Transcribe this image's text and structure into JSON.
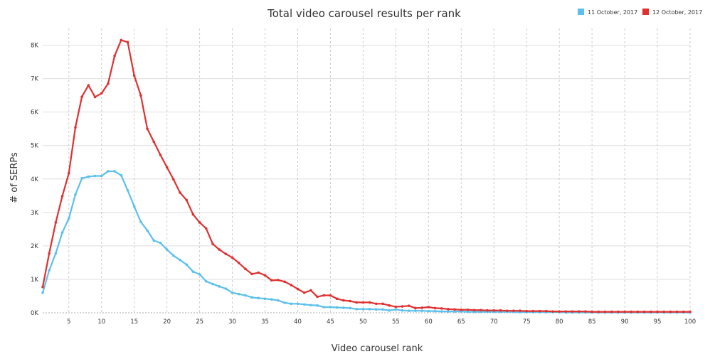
{
  "chart_data": {
    "type": "line",
    "title": "Total video carousel results per rank",
    "xlabel": "Video carousel rank",
    "ylabel": "# of SERPs",
    "xlim": [
      1,
      100
    ],
    "ylim": [
      0,
      8500
    ],
    "x_ticks": [
      5,
      10,
      15,
      20,
      25,
      30,
      35,
      40,
      45,
      50,
      55,
      60,
      65,
      70,
      75,
      80,
      85,
      90,
      95,
      100
    ],
    "y_ticks": [
      {
        "value": 0,
        "label": "0K"
      },
      {
        "value": 1000,
        "label": "1K"
      },
      {
        "value": 2000,
        "label": "2K"
      },
      {
        "value": 3000,
        "label": "3K"
      },
      {
        "value": 4000,
        "label": "4K"
      },
      {
        "value": 5000,
        "label": "5K"
      },
      {
        "value": 6000,
        "label": "6K"
      },
      {
        "value": 7000,
        "label": "7K"
      },
      {
        "value": 8000,
        "label": "8K"
      }
    ],
    "grid": true,
    "legend_position": "top-right",
    "series": [
      {
        "name": "11 October, 2017",
        "color": "#5bc0eb",
        "values": [
          600,
          1270,
          1780,
          2400,
          2820,
          3530,
          4020,
          4070,
          4090,
          4090,
          4230,
          4230,
          4110,
          3660,
          3180,
          2720,
          2460,
          2160,
          2090,
          1890,
          1710,
          1580,
          1440,
          1230,
          1150,
          940,
          860,
          790,
          720,
          600,
          560,
          520,
          460,
          440,
          420,
          400,
          370,
          300,
          270,
          270,
          250,
          230,
          220,
          170,
          170,
          160,
          150,
          140,
          110,
          110,
          110,
          100,
          100,
          70,
          100,
          70,
          60,
          60,
          60,
          50,
          50,
          40,
          40,
          40,
          40,
          30,
          30,
          30,
          30,
          30,
          30,
          30,
          30,
          20,
          20,
          20,
          20,
          20,
          20,
          20,
          10,
          10,
          10,
          10,
          10,
          10,
          10,
          10,
          10,
          10,
          10,
          10,
          10,
          10,
          10,
          10,
          10,
          10,
          10,
          10
        ]
      },
      {
        "name": "12 October, 2017",
        "color": "#e03030",
        "values": [
          770,
          1780,
          2700,
          3490,
          4170,
          5540,
          6460,
          6800,
          6450,
          6560,
          6850,
          7680,
          8150,
          8090,
          7090,
          6500,
          5500,
          5110,
          4720,
          4350,
          3990,
          3590,
          3370,
          2940,
          2700,
          2520,
          2060,
          1890,
          1760,
          1650,
          1490,
          1310,
          1160,
          1200,
          1120,
          970,
          980,
          930,
          830,
          710,
          600,
          670,
          480,
          520,
          520,
          420,
          370,
          350,
          310,
          310,
          310,
          270,
          270,
          220,
          180,
          190,
          210,
          140,
          150,
          170,
          140,
          130,
          110,
          100,
          90,
          90,
          80,
          80,
          70,
          70,
          70,
          60,
          60,
          60,
          50,
          50,
          50,
          50,
          40,
          40,
          40,
          40,
          40,
          40,
          30,
          30,
          30,
          30,
          30,
          30,
          30,
          30,
          30,
          30,
          30,
          30,
          30,
          30,
          30,
          30
        ]
      }
    ]
  }
}
